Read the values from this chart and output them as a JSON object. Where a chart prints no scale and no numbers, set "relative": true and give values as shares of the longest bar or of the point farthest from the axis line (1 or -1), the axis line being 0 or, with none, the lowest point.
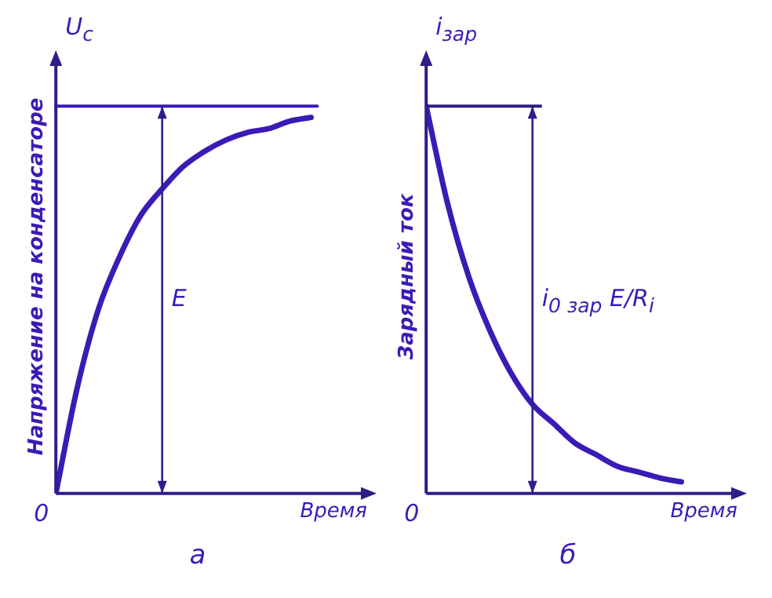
{
  "chart_data": [
    {
      "type": "line",
      "relative": true,
      "xlabel": "Время",
      "ylabel": "Напряжение на конденсаторе",
      "subtitle": "а",
      "grid": false,
      "legend": false,
      "marker": "none",
      "categories": [
        null,
        null,
        null,
        null,
        null,
        null,
        null,
        null,
        null,
        null,
        null,
        null,
        null
      ],
      "series": [
        {
          "color": "#3b1bb5",
          "values": [
            0,
            0.28,
            0.49,
            0.63,
            0.74,
            0.81,
            0.87,
            0.91,
            0.94,
            0.96,
            0.97,
            0.99,
            1
          ]
        }
      ],
      "ref_lines": [
        {
          "axis": "y",
          "value": 1.03,
          "color": "#3b1bb5"
        }
      ],
      "annotations": [
        "U$_{c}$",
        "0",
        "E"
      ]
    },
    {
      "type": "line",
      "relative": true,
      "xlabel": "Время",
      "ylabel": "Зарядный ток",
      "subtitle": "б",
      "grid": false,
      "legend": false,
      "marker": "none",
      "categories": [
        null,
        null,
        null,
        null,
        null,
        null,
        null,
        null,
        null,
        null,
        null,
        null,
        null
      ],
      "series": [
        {
          "color": "#3b1bb5",
          "values": [
            1,
            0.75,
            0.56,
            0.42,
            0.31,
            0.23,
            0.18,
            0.13,
            0.1,
            0.07,
            0.055,
            0.04,
            0.03
          ]
        }
      ],
      "annotations": [
        "i$_{зар}$",
        "0",
        "i$_{0 зар}$ E/R$_{i}$"
      ]
    }
  ]
}
